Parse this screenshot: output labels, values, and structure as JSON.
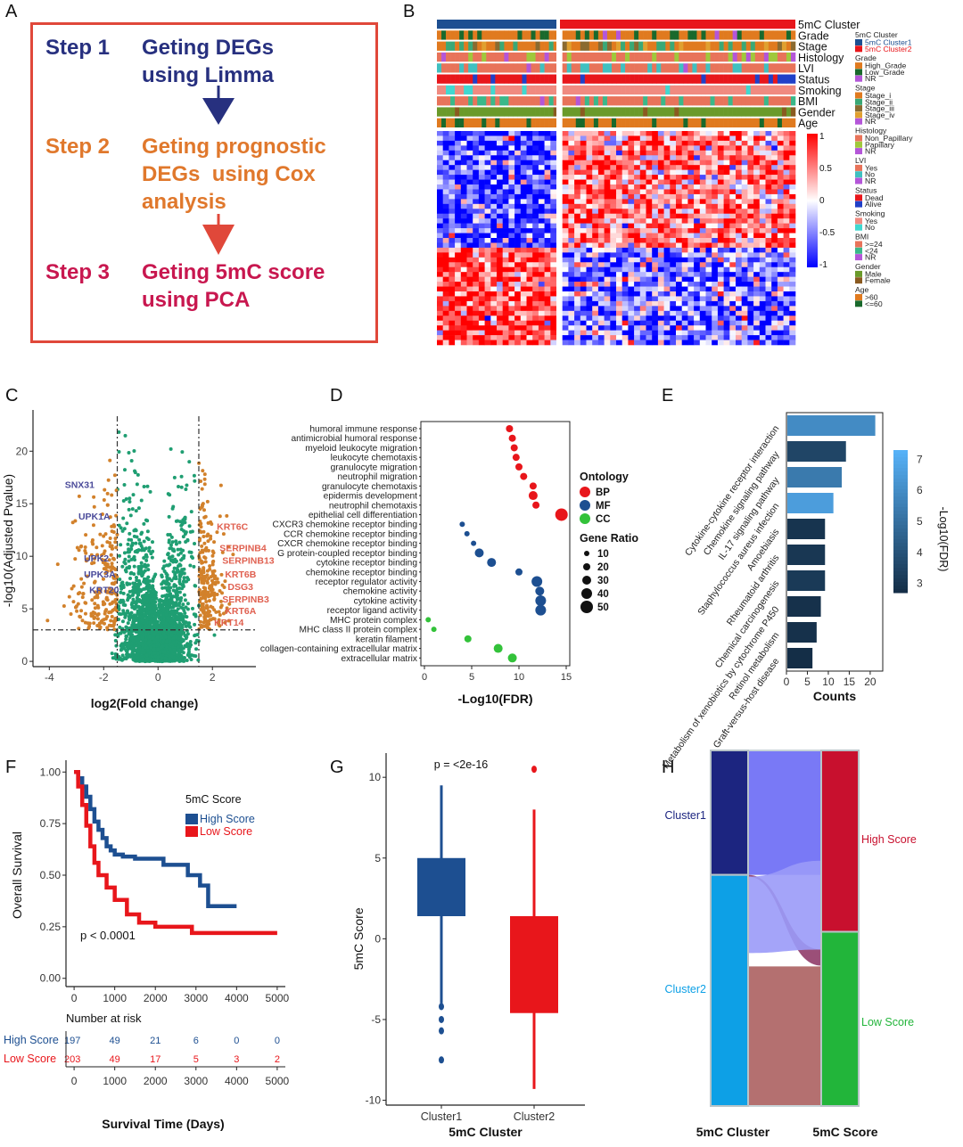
{
  "panel_labels": [
    "A",
    "B",
    "C",
    "D",
    "E",
    "F",
    "G",
    "H"
  ],
  "panelA": {
    "steps": [
      {
        "name": "Step 1",
        "text": "Geting DEGs\nusing Limma",
        "color": "#27307f"
      },
      {
        "name": "Step 2",
        "text": "Geting prognostic\nDEGs  using Cox\nanalysis",
        "color": "#e0782c"
      },
      {
        "name": "Step 3",
        "text": "Geting 5mC score\nusing PCA",
        "color": "#c8174f"
      }
    ],
    "arrow_colors": [
      "#27307f",
      "#e0483a"
    ]
  },
  "panelB": {
    "annotation_rows": [
      "5mC Cluster",
      "Grade",
      "Stage",
      "Histology",
      "LVI",
      "Status",
      "Smoking",
      "BMI",
      "Gender",
      "Age"
    ],
    "color_scale": {
      "ticks": [
        "1",
        "0.5",
        "0",
        "-0.5",
        "-1"
      ],
      "colors": [
        "#ff0000",
        "#ffffff",
        "#0000ff"
      ]
    },
    "legend": [
      {
        "title": "5mC Cluster",
        "items": [
          {
            "label": "5mC Cluster1",
            "color": "#1d4f91"
          },
          {
            "label": "5mC Cluster2",
            "color": "#e8161b"
          }
        ]
      },
      {
        "title": "Grade",
        "items": [
          {
            "label": "High_Grade",
            "color": "#e07a1f"
          },
          {
            "label": "Low_Grade",
            "color": "#19692c"
          },
          {
            "label": "NR",
            "color": "#b456d8"
          }
        ]
      },
      {
        "title": "Stage",
        "items": [
          {
            "label": "Stage_i",
            "color": "#e07a1f"
          },
          {
            "label": "Stage_ii",
            "color": "#3aa876"
          },
          {
            "label": "Stage_iii",
            "color": "#8a6a30"
          },
          {
            "label": "Stage_iv",
            "color": "#e0a030"
          },
          {
            "label": "NR",
            "color": "#b456d8"
          }
        ]
      },
      {
        "title": "Histology",
        "items": [
          {
            "label": "Non_Papillary",
            "color": "#e8735a"
          },
          {
            "label": "Papillary",
            "color": "#a0c83c"
          },
          {
            "label": "NR",
            "color": "#b456d8"
          }
        ]
      },
      {
        "title": "LVI",
        "items": [
          {
            "label": "Yes",
            "color": "#e8735a"
          },
          {
            "label": "No",
            "color": "#40c0c0"
          },
          {
            "label": "NR",
            "color": "#b456d8"
          }
        ]
      },
      {
        "title": "Status",
        "items": [
          {
            "label": "Dead",
            "color": "#e8161b"
          },
          {
            "label": "Alive",
            "color": "#2040c8"
          }
        ]
      },
      {
        "title": "Smoking",
        "items": [
          {
            "label": "Yes",
            "color": "#f08a80"
          },
          {
            "label": "No",
            "color": "#40d8d0"
          }
        ]
      },
      {
        "title": "BMI",
        "items": [
          {
            "label": ">=24",
            "color": "#e8735a"
          },
          {
            "label": "<24",
            "color": "#3ab88a"
          },
          {
            "label": "NR",
            "color": "#b456d8"
          }
        ]
      },
      {
        "title": "Gender",
        "items": [
          {
            "label": "Male",
            "color": "#6a9a2a"
          },
          {
            "label": "Female",
            "color": "#8a5a20"
          }
        ]
      },
      {
        "title": "Age",
        "items": [
          {
            "label": ">60",
            "color": "#e07a1f"
          },
          {
            "label": "<=60",
            "color": "#19692c"
          }
        ]
      }
    ]
  },
  "chart_data": [
    {
      "panel": "C",
      "type": "scatter",
      "xlabel": "log2(Fold change)",
      "ylabel": "-log10(Adjusted Pvalue)",
      "xlim": [
        -4.6,
        3.6
      ],
      "ylim": [
        -0.5,
        23.5
      ],
      "xticks": [
        "-4",
        "-2",
        "0",
        "2"
      ],
      "yticks": [
        "0",
        "5",
        "10",
        "15",
        "20"
      ],
      "fc_cutoffs": [
        -1.5,
        1.5
      ],
      "p_cutoff": 3,
      "colors": {
        "ns": "#1f9e72",
        "sig": "#d2812b"
      },
      "labeled_genes": [
        {
          "gene": "SNX31",
          "x": -3.1,
          "y": 16.5,
          "side": "down"
        },
        {
          "gene": "UPK1A",
          "x": -2.6,
          "y": 13.5,
          "side": "down"
        },
        {
          "gene": "UPK2",
          "x": -2.4,
          "y": 9.5,
          "side": "down"
        },
        {
          "gene": "UPK3A",
          "x": -2.4,
          "y": 8.0,
          "side": "down"
        },
        {
          "gene": "KRT20",
          "x": -2.2,
          "y": 6.5,
          "side": "down"
        },
        {
          "gene": "KRT6C",
          "x": 1.9,
          "y": 12.5,
          "side": "up"
        },
        {
          "gene": "SERPINB4",
          "x": 2.0,
          "y": 10.5,
          "side": "up"
        },
        {
          "gene": "SERPINB13",
          "x": 2.1,
          "y": 9.3,
          "side": "up"
        },
        {
          "gene": "KRT6B",
          "x": 2.2,
          "y": 8.0,
          "side": "up"
        },
        {
          "gene": "DSG3",
          "x": 2.3,
          "y": 6.8,
          "side": "up"
        },
        {
          "gene": "SERPINB3",
          "x": 2.1,
          "y": 5.6,
          "side": "up"
        },
        {
          "gene": "KRT6A",
          "x": 2.2,
          "y": 4.5,
          "side": "up"
        },
        {
          "gene": "KRT14",
          "x": 1.8,
          "y": 3.4,
          "side": "up"
        }
      ]
    },
    {
      "panel": "D",
      "type": "scatter",
      "xlabel": "-Log10(FDR)",
      "xlim": [
        0,
        15
      ],
      "xticks": [
        "0",
        "5",
        "10",
        "15"
      ],
      "legend_title": "Ontology",
      "size_legend_title": "Gene Ratio",
      "series": [
        {
          "name": "BP",
          "color": "#e8161b"
        },
        {
          "name": "MF",
          "color": "#1d4f91"
        },
        {
          "name": "CC",
          "color": "#33c23a"
        }
      ],
      "size_legend": [
        "10",
        "20",
        "30",
        "40",
        "50"
      ],
      "terms": [
        {
          "term": "humoral immune response",
          "x": 9.0,
          "ratio": 20,
          "ont": "BP"
        },
        {
          "term": "antimicrobial humoral response",
          "x": 9.3,
          "ratio": 20,
          "ont": "BP"
        },
        {
          "term": "myeloid leukocyte migration",
          "x": 9.5,
          "ratio": 20,
          "ont": "BP"
        },
        {
          "term": "leukocyte chemotaxis",
          "x": 9.7,
          "ratio": 20,
          "ont": "BP"
        },
        {
          "term": "granulocyte migration",
          "x": 10.0,
          "ratio": 20,
          "ont": "BP"
        },
        {
          "term": "neutrophil migration",
          "x": 10.5,
          "ratio": 20,
          "ont": "BP"
        },
        {
          "term": "granulocyte chemotaxis",
          "x": 11.5,
          "ratio": 20,
          "ont": "BP"
        },
        {
          "term": "epidermis development",
          "x": 11.5,
          "ratio": 30,
          "ont": "BP"
        },
        {
          "term": "neutrophil chemotaxis",
          "x": 11.8,
          "ratio": 20,
          "ont": "BP"
        },
        {
          "term": "epithelial cell differentiation",
          "x": 14.5,
          "ratio": 50,
          "ont": "BP"
        },
        {
          "term": "CXCR3 chemokine receptor binding",
          "x": 4.0,
          "ratio": 10,
          "ont": "MF"
        },
        {
          "term": "CCR chemokine receptor binding",
          "x": 4.5,
          "ratio": 10,
          "ont": "MF"
        },
        {
          "term": "CXCR chemokine receptor binding",
          "x": 5.2,
          "ratio": 10,
          "ont": "MF"
        },
        {
          "term": "G protein-coupled receptor binding",
          "x": 5.8,
          "ratio": 30,
          "ont": "MF"
        },
        {
          "term": "cytokine receptor binding",
          "x": 7.1,
          "ratio": 30,
          "ont": "MF"
        },
        {
          "term": "chemokine receptor binding",
          "x": 10.0,
          "ratio": 20,
          "ont": "MF"
        },
        {
          "term": "receptor regulator activity",
          "x": 11.9,
          "ratio": 40,
          "ont": "MF"
        },
        {
          "term": "chemokine activity",
          "x": 12.2,
          "ratio": 30,
          "ont": "MF"
        },
        {
          "term": "cytokine activity",
          "x": 12.3,
          "ratio": 40,
          "ont": "MF"
        },
        {
          "term": "receptor ligand activity",
          "x": 12.3,
          "ratio": 40,
          "ont": "MF"
        },
        {
          "term": "MHC protein complex",
          "x": 0.4,
          "ratio": 10,
          "ont": "CC"
        },
        {
          "term": "MHC class II protein complex",
          "x": 1.0,
          "ratio": 10,
          "ont": "CC"
        },
        {
          "term": "keratin filament",
          "x": 4.6,
          "ratio": 20,
          "ont": "CC"
        },
        {
          "term": "collagen-containing extracellular matrix",
          "x": 7.8,
          "ratio": 30,
          "ont": "CC"
        },
        {
          "term": "extracellular matrix",
          "x": 9.3,
          "ratio": 30,
          "ont": "CC"
        }
      ]
    },
    {
      "panel": "E",
      "type": "bar",
      "xlabel": "Counts",
      "xlim": [
        0,
        23
      ],
      "xticks": [
        "0",
        "5",
        "10",
        "15",
        "20"
      ],
      "colorbar_title": "-Log10(FDR)",
      "colorbar_ticks": [
        "7",
        "6",
        "5",
        "4",
        "3"
      ],
      "colorbar_range": [
        2.7,
        7.3
      ],
      "categories": [
        "Cytokine-cytokine receptor interaction",
        "Chemokine signaling pathway",
        "IL-17 signaling pathway",
        "Staphylococcus aureus infection",
        "Amoebiasis",
        "Rheumatoid arthritis",
        "Chemical carcinogenesis",
        "Metabolism of xenobiotics by cytochrome P450",
        "Retinol metabolism",
        "Graft-versus-host disease"
      ],
      "values": [
        21,
        14,
        13,
        11,
        9,
        9,
        9,
        8,
        7,
        6
      ],
      "fdr": [
        6.0,
        3.6,
        5.4,
        6.6,
        3.0,
        3.1,
        3.2,
        2.9,
        2.9,
        2.8
      ]
    },
    {
      "panel": "F",
      "type": "line",
      "xlabel": "Survival Time (Days)",
      "ylabel": "Overall Survival",
      "xlim": [
        -200,
        5200
      ],
      "ylim": [
        -0.04,
        1.04
      ],
      "xticks": [
        "0",
        "1000",
        "2000",
        "3000",
        "4000",
        "5000"
      ],
      "yticks": [
        "1.00",
        "0.75",
        "0.50",
        "0.25",
        "0.00"
      ],
      "legend_title": "5mC Score",
      "pvalue": "p < 0.0001",
      "series": [
        {
          "name": "High Score",
          "color": "#1d4f91",
          "x": [
            0,
            100,
            200,
            300,
            400,
            500,
            600,
            700,
            800,
            900,
            1000,
            1200,
            1500,
            1800,
            2200,
            2800,
            3100,
            3300,
            4000
          ],
          "y": [
            1.0,
            0.97,
            0.93,
            0.88,
            0.82,
            0.76,
            0.72,
            0.68,
            0.64,
            0.62,
            0.6,
            0.59,
            0.58,
            0.58,
            0.55,
            0.5,
            0.45,
            0.35,
            0.35
          ]
        },
        {
          "name": "Low Score",
          "color": "#e8161b",
          "x": [
            0,
            100,
            200,
            300,
            400,
            500,
            600,
            800,
            1000,
            1300,
            1600,
            2000,
            2500,
            2900,
            5000
          ],
          "y": [
            1.0,
            0.93,
            0.84,
            0.74,
            0.64,
            0.56,
            0.5,
            0.44,
            0.38,
            0.31,
            0.27,
            0.25,
            0.25,
            0.22,
            0.22
          ]
        }
      ],
      "risk_table": {
        "title": "Number at risk",
        "rows": [
          {
            "name": "High Score",
            "values": [
              "197",
              "49",
              "21",
              "6",
              "0",
              "0"
            ]
          },
          {
            "name": "Low Score",
            "values": [
              "203",
              "49",
              "17",
              "5",
              "3",
              "2"
            ]
          }
        ]
      }
    },
    {
      "panel": "G",
      "type": "box",
      "xlabel": "5mC Cluster",
      "ylabel": "5mC Score",
      "pvalue": "p = <2e-16",
      "ylim": [
        -10.3,
        11.5
      ],
      "yticks": [
        "10",
        "5",
        "0",
        "-5",
        "-10"
      ],
      "categories": [
        "Cluster1",
        "Cluster2"
      ],
      "boxes": [
        {
          "name": "Cluster1",
          "color": "#1d4f91",
          "q1": 1.4,
          "median": 3.5,
          "q3": 5.0,
          "low": -4.0,
          "high": 9.5,
          "outliers": [
            -4.2,
            -5.0,
            -5.7,
            -7.5
          ]
        },
        {
          "name": "Cluster2",
          "color": "#e8161b",
          "q1": -4.6,
          "median": -1.5,
          "q3": 1.4,
          "low": -9.3,
          "high": 8.0,
          "outliers": [
            10.5
          ]
        }
      ]
    },
    {
      "panel": "H",
      "type": "sankey",
      "xlabel_left": "5mC Cluster",
      "xlabel_right": "5mC Score",
      "left": [
        {
          "name": "Cluster1",
          "color": "#1c2580",
          "text_color": "#1c2580",
          "frac": 0.35
        },
        {
          "name": "Cluster2",
          "color": "#0da0e6",
          "text_color": "#0da0e6",
          "frac": 0.65
        }
      ],
      "right": [
        {
          "name": "High Score",
          "color": "#c8102e",
          "text_color": "#c8102e",
          "frac": 0.51
        },
        {
          "name": "Low Score",
          "color": "#22b53a",
          "text_color": "#22b53a",
          "frac": 0.49
        }
      ]
    }
  ]
}
